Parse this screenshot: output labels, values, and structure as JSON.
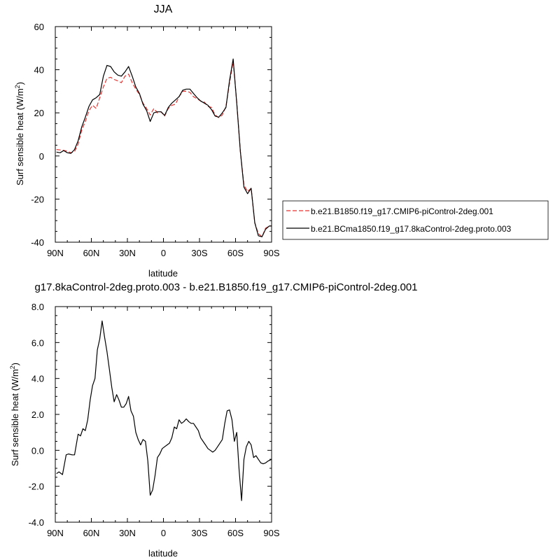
{
  "chart_data": [
    {
      "type": "line",
      "title": "JJA",
      "xlabel": "latitude",
      "ylabel": "Surf sensible heat (W/m",
      "ylabel_sup": "2",
      "ylabel_close": ")",
      "xlim": [
        90,
        -90
      ],
      "ylim": [
        -40,
        60
      ],
      "xticks": [
        90,
        60,
        30,
        0,
        -30,
        -60,
        -90
      ],
      "xtick_labels": [
        "90N",
        "60N",
        "30N",
        "0",
        "30S",
        "60S",
        "90S"
      ],
      "yticks": [
        -40,
        -20,
        0,
        20,
        40,
        60
      ],
      "ytick_labels": [
        "-40",
        "-20",
        "0",
        "20",
        "40",
        "60"
      ],
      "legend": "right",
      "series": [
        {
          "name": "b.e21.B1850.f19_g17.CMIP6-piControl-2deg.001",
          "color": "#e8322f",
          "dash": true,
          "x": [
            89,
            86,
            83,
            80,
            77,
            74,
            71,
            68,
            65,
            62,
            59,
            56,
            53,
            50,
            47,
            44,
            41,
            38,
            35,
            32,
            29,
            26,
            23,
            20,
            17,
            14,
            11,
            8,
            5,
            2,
            -1,
            -4,
            -7,
            -10,
            -13,
            -16,
            -19,
            -22,
            -25,
            -28,
            -31,
            -34,
            -37,
            -40,
            -43,
            -46,
            -49,
            -52,
            -55,
            -58,
            -61,
            -64,
            -67,
            -70,
            -73,
            -76,
            -79,
            -82,
            -85,
            -88,
            -90
          ],
          "y": [
            3,
            2.8,
            2.6,
            2.2,
            1.5,
            2,
            5.5,
            12,
            16,
            21,
            23.5,
            22,
            27,
            32,
            36,
            36.5,
            35.5,
            34.8,
            34,
            37,
            38,
            34,
            31,
            28.5,
            24.5,
            22,
            19,
            22,
            20,
            20.5,
            18.5,
            22,
            23.5,
            24,
            27.5,
            30,
            30,
            29.5,
            27.5,
            26.5,
            25.5,
            25,
            23,
            22.5,
            19,
            17.8,
            19,
            23,
            33.8,
            43.8,
            25,
            2,
            -13.5,
            -16.5,
            -15,
            -31,
            -36,
            -37.5,
            -33.5,
            -32.5,
            -32.5
          ]
        },
        {
          "name": "b.e21.BCma1850.f19_g17.8kaControl-2deg.proto.003",
          "color": "#000000",
          "dash": false,
          "x": [
            89,
            86,
            83,
            80,
            77,
            74,
            71,
            68,
            65,
            62,
            59,
            56,
            53,
            50,
            47,
            44,
            41,
            38,
            35,
            32,
            29,
            26,
            23,
            20,
            17,
            14,
            11,
            8,
            5,
            2,
            -1,
            -4,
            -7,
            -10,
            -13,
            -16,
            -19,
            -22,
            -25,
            -28,
            -31,
            -34,
            -37,
            -40,
            -43,
            -46,
            -49,
            -52,
            -55,
            -58,
            -61,
            -64,
            -67,
            -70,
            -73,
            -76,
            -79,
            -82,
            -85,
            -88,
            -90
          ],
          "y": [
            1.8,
            1.5,
            2.5,
            1.5,
            1.2,
            3,
            7,
            13.5,
            18,
            23,
            26,
            27,
            28.5,
            37,
            42,
            41.5,
            39,
            37.5,
            37,
            39,
            41.5,
            37,
            32,
            29,
            24,
            21,
            16,
            20,
            20.5,
            20.5,
            18.8,
            22.5,
            24.5,
            26,
            27.5,
            30.5,
            31,
            31,
            29,
            27,
            25.5,
            24.5,
            23.5,
            21.5,
            18.5,
            18,
            20,
            22.5,
            35,
            45,
            24.5,
            2,
            -14.5,
            -17.5,
            -15,
            -31,
            -37,
            -37.5,
            -34,
            -32.5,
            -32.5
          ]
        }
      ]
    },
    {
      "type": "line",
      "title": "g17.8kaControl-2deg.proto.003 - b.e21.B1850.f19_g17.CMIP6-piControl-2deg.001",
      "xlabel": "latitude",
      "ylabel": "Surf sensible heat (W/m",
      "ylabel_sup": "2",
      "ylabel_close": ")",
      "xlim": [
        90,
        -90
      ],
      "ylim": [
        -4,
        8
      ],
      "xticks": [
        90,
        60,
        30,
        0,
        -30,
        -60,
        -90
      ],
      "xtick_labels": [
        "90N",
        "60N",
        "30N",
        "0",
        "30S",
        "60S",
        "90S"
      ],
      "yticks": [
        -4,
        -2,
        0,
        2,
        4,
        6,
        8
      ],
      "ytick_labels": [
        "-4.0",
        "-2.0",
        "0.0",
        "2.0",
        "4.0",
        "6.0",
        "8.0"
      ],
      "series": [
        {
          "color": "#000000",
          "x": [
            89,
            87,
            84,
            81,
            79,
            76,
            74,
            71,
            69,
            67,
            65,
            63,
            61,
            59,
            57,
            55,
            53,
            51,
            49,
            47,
            45,
            43,
            41,
            39,
            37,
            35,
            33,
            31,
            29,
            27,
            25,
            23,
            21,
            19,
            17,
            15,
            13,
            11,
            9,
            7,
            5,
            3,
            1,
            -1,
            -3,
            -5,
            -7,
            -9,
            -11,
            -13,
            -15,
            -17,
            -19,
            -21,
            -23,
            -25,
            -27,
            -29,
            -31,
            -33,
            -35,
            -37,
            -39,
            -41,
            -43,
            -45,
            -47,
            -49,
            -51,
            -53,
            -55,
            -57,
            -59,
            -61,
            -63,
            -65,
            -67,
            -69,
            -71,
            -73,
            -75,
            -77,
            -79,
            -81,
            -83,
            -85,
            -87,
            -90
          ],
          "y": [
            -1.3,
            -1.2,
            -1.35,
            -0.25,
            -0.2,
            -0.25,
            -0.25,
            0.9,
            0.8,
            1.2,
            1.1,
            1.7,
            2.8,
            3.6,
            4.0,
            5.6,
            6.2,
            7.2,
            6.3,
            5.5,
            4.5,
            3.5,
            2.7,
            3.1,
            2.8,
            2.4,
            2.4,
            2.6,
            3.0,
            2.2,
            1.9,
            1.0,
            0.6,
            0.3,
            0.6,
            0.5,
            -0.6,
            -2.5,
            -2.2,
            -1.4,
            -0.4,
            -0.2,
            0.1,
            0.2,
            0.3,
            0.4,
            0.7,
            1.3,
            1.2,
            1.7,
            1.5,
            1.6,
            1.75,
            1.6,
            1.5,
            1.5,
            1.3,
            1.1,
            0.7,
            0.5,
            0.3,
            0.1,
            0.0,
            -0.1,
            0.0,
            0.2,
            0.4,
            0.6,
            1.5,
            2.2,
            2.25,
            1.7,
            0.5,
            1.0,
            -1.1,
            -2.8,
            -0.5,
            0.2,
            0.5,
            0.3,
            -0.4,
            -0.3,
            -0.5,
            -0.7,
            -0.75,
            -0.7,
            -0.6,
            -0.5
          ]
        }
      ]
    }
  ]
}
